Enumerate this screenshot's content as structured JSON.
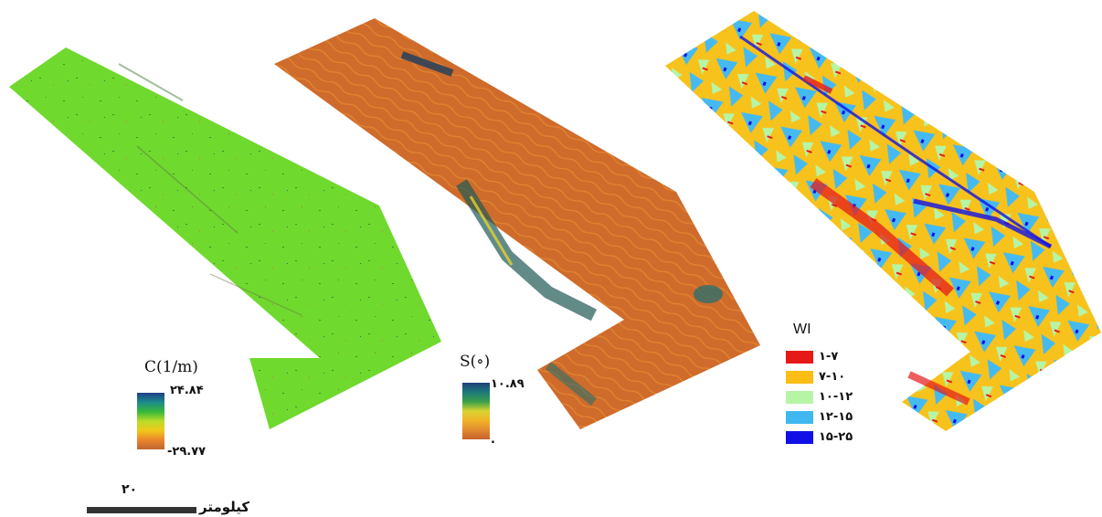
{
  "panels": {
    "curvature": {
      "title": "C(1/m)",
      "max": "۲۴.۸۴",
      "min": "-۲۹.۷۷",
      "ramp_colors": [
        "#1f3f88",
        "#1c8a8a",
        "#37b73a",
        "#b9dc2a",
        "#f0c81a",
        "#e9852c",
        "#c0652f"
      ]
    },
    "slope": {
      "title": "S(∘)",
      "max": "۱۰.۸۹",
      "min": ".",
      "ramp_colors": [
        "#1f3f78",
        "#1d7a7a",
        "#3aa04a",
        "#d8d230",
        "#f2b428",
        "#e08a30",
        "#c6622c"
      ]
    },
    "wetness": {
      "title": "WI",
      "classes": [
        {
          "label": "۱-۷",
          "color": "#e61919"
        },
        {
          "label": "۷-۱۰",
          "color": "#fcbd14"
        },
        {
          "label": "۱۰-۱۲",
          "color": "#b6f5a6"
        },
        {
          "label": "۱۲-۱۵",
          "color": "#3fb8ef"
        },
        {
          "label": "۱۵-۲۵",
          "color": "#1010e6"
        }
      ]
    }
  },
  "scale": {
    "value": "۲۰",
    "unit": "کیلومتر"
  }
}
